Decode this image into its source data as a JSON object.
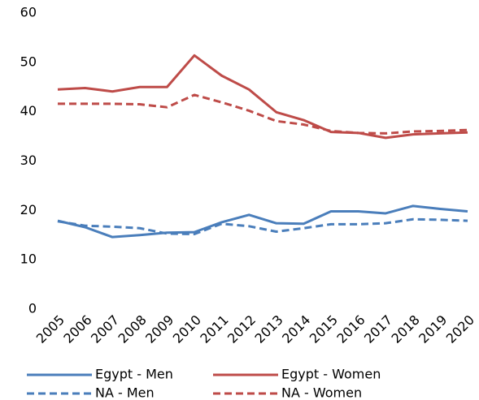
{
  "chart_data": {
    "type": "line",
    "categories": [
      "2005",
      "2006",
      "2007",
      "2008",
      "2009",
      "2010",
      "2011",
      "2012",
      "2013",
      "2014",
      "2015",
      "2016",
      "2017",
      "2018",
      "2019",
      "2020"
    ],
    "series": [
      {
        "name": "Egypt - Men",
        "color": "#4a7ebb",
        "line_style": "solid",
        "values": [
          17.9,
          16.6,
          14.6,
          15,
          15.5,
          15.6,
          17.6,
          19.1,
          17.4,
          17.3,
          19.8,
          19.8,
          19.4,
          20.9,
          20.3,
          19.8
        ]
      },
      {
        "name": "Egypt - Women",
        "color": "#be4b48",
        "line_style": "solid",
        "values": [
          44.5,
          44.8,
          44.1,
          45,
          45,
          51.4,
          47.3,
          44.5,
          39.9,
          38.3,
          35.9,
          35.7,
          34.7,
          35.4,
          35.6,
          35.8
        ]
      },
      {
        "name": "NA - Men",
        "color": "#4a7ebb",
        "line_style": "dashed",
        "values": [
          17.8,
          16.9,
          16.7,
          16.4,
          15.3,
          15.2,
          17.3,
          16.8,
          15.7,
          16.4,
          17.2,
          17.2,
          17.4,
          18.2,
          18.1,
          17.9
        ]
      },
      {
        "name": "NA - Women",
        "color": "#be4b48",
        "line_style": "dashed",
        "values": [
          41.6,
          41.6,
          41.6,
          41.5,
          40.9,
          43.4,
          41.9,
          40.2,
          38.1,
          37.4,
          36.1,
          35.7,
          35.6,
          36,
          36.1,
          36.3
        ]
      }
    ],
    "ylim": [
      0,
      60
    ],
    "yticks": [
      0,
      10,
      20,
      30,
      40,
      50,
      60
    ],
    "grid": false,
    "legend": "bottom"
  }
}
